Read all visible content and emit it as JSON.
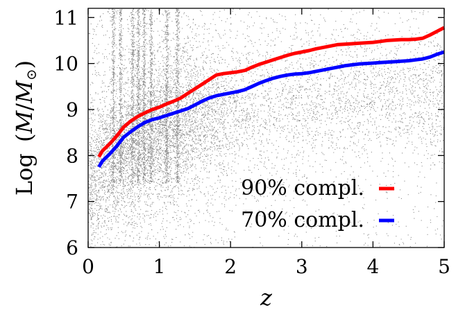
{
  "chart_data": {
    "type": "scatter",
    "xlabel": "z",
    "ylabel": "Log (M/M⊙)",
    "ylabel_parts": {
      "prefix": "Log",
      "open": "(",
      "M": "M",
      "slash": "/",
      "Msun": "M",
      "sun": "⊙",
      "close": ")"
    },
    "xlim": [
      0,
      5
    ],
    "ylim": [
      6,
      11.2
    ],
    "xticks": [
      0,
      1,
      2,
      3,
      4,
      5
    ],
    "yticks": [
      6,
      7,
      8,
      9,
      10,
      11
    ],
    "xtick_labels": [
      "0",
      "1",
      "2",
      "3",
      "4",
      "5"
    ],
    "ytick_labels": [
      "6",
      "7",
      "8",
      "9",
      "10",
      "11"
    ],
    "grid": false,
    "legend_position": "bottom-right",
    "scatter_color": "#8c8c8c",
    "series": [
      {
        "name": "90% compl.",
        "color": "#ff0000",
        "x": [
          0.15,
          0.2,
          0.3,
          0.4,
          0.5,
          0.6,
          0.7,
          0.8,
          0.9,
          1.0,
          1.1,
          1.2,
          1.3,
          1.4,
          1.5,
          1.6,
          1.7,
          1.8,
          1.9,
          2.0,
          2.1,
          2.2,
          2.3,
          2.4,
          2.5,
          2.6,
          2.7,
          2.8,
          2.9,
          3.0,
          3.1,
          3.2,
          3.3,
          3.4,
          3.5,
          3.6,
          3.7,
          3.8,
          3.9,
          4.0,
          4.1,
          4.2,
          4.3,
          4.4,
          4.5,
          4.6,
          4.7,
          4.8,
          4.9,
          5.0
        ],
        "y": [
          7.97,
          8.1,
          8.25,
          8.42,
          8.62,
          8.75,
          8.85,
          8.93,
          9.0,
          9.05,
          9.12,
          9.18,
          9.25,
          9.35,
          9.45,
          9.55,
          9.65,
          9.75,
          9.78,
          9.8,
          9.82,
          9.85,
          9.92,
          9.98,
          10.03,
          10.08,
          10.13,
          10.18,
          10.22,
          10.25,
          10.28,
          10.32,
          10.35,
          10.38,
          10.41,
          10.42,
          10.43,
          10.44,
          10.45,
          10.46,
          10.48,
          10.5,
          10.51,
          10.52,
          10.52,
          10.53,
          10.55,
          10.62,
          10.7,
          10.78
        ]
      },
      {
        "name": "70% compl.",
        "color": "#0000ff",
        "x": [
          0.15,
          0.2,
          0.3,
          0.4,
          0.5,
          0.6,
          0.7,
          0.8,
          0.9,
          1.0,
          1.1,
          1.2,
          1.3,
          1.4,
          1.5,
          1.6,
          1.7,
          1.8,
          1.9,
          2.0,
          2.1,
          2.2,
          2.3,
          2.4,
          2.5,
          2.6,
          2.7,
          2.8,
          2.9,
          3.0,
          3.1,
          3.2,
          3.3,
          3.4,
          3.5,
          3.6,
          3.7,
          3.8,
          3.9,
          4.0,
          4.1,
          4.2,
          4.3,
          4.4,
          4.5,
          4.6,
          4.7,
          4.8,
          4.9,
          5.0
        ],
        "y": [
          7.75,
          7.88,
          8.03,
          8.2,
          8.4,
          8.52,
          8.63,
          8.72,
          8.78,
          8.82,
          8.87,
          8.92,
          8.97,
          9.02,
          9.1,
          9.18,
          9.25,
          9.3,
          9.33,
          9.36,
          9.39,
          9.43,
          9.5,
          9.57,
          9.63,
          9.68,
          9.72,
          9.75,
          9.77,
          9.78,
          9.8,
          9.83,
          9.86,
          9.89,
          9.92,
          9.95,
          9.97,
          9.99,
          10.0,
          10.01,
          10.02,
          10.03,
          10.04,
          10.05,
          10.06,
          10.08,
          10.1,
          10.14,
          10.2,
          10.25
        ]
      }
    ]
  }
}
